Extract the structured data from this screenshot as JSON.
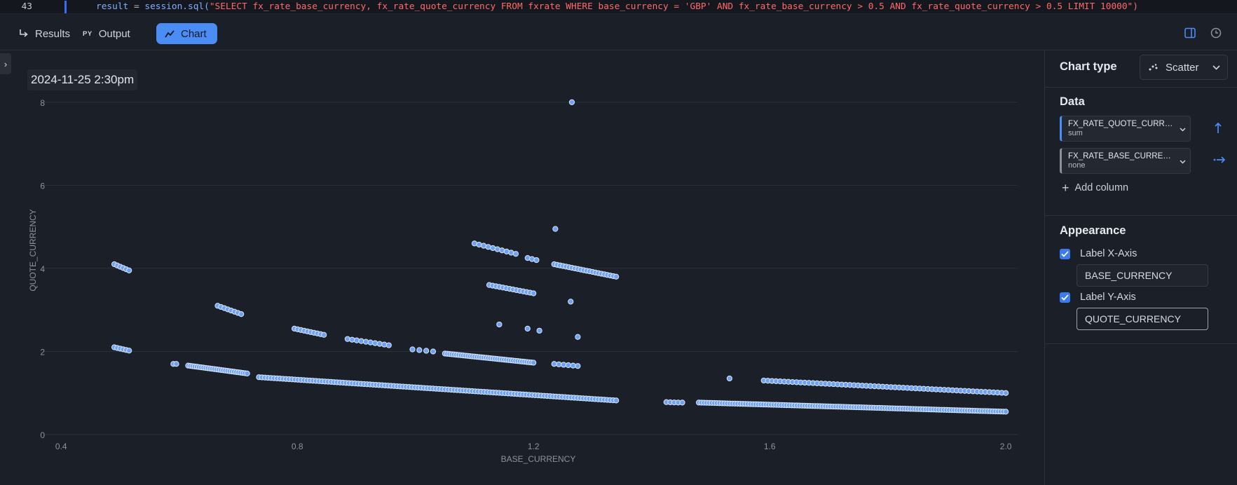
{
  "code": {
    "line_number": "43",
    "var": "result",
    "op": " = ",
    "call": "session.sql(",
    "string": "\"SELECT fx_rate_base_currency, fx_rate_quote_currency FROM fxrate WHERE base_currency = 'GBP' AND fx_rate_base_currency > 0.5 AND fx_rate_quote_currency > 0.5 LIMIT 10000\")"
  },
  "tabs": [
    {
      "label": "Results",
      "icon": "return-arrow-icon"
    },
    {
      "label": "Output",
      "icon": "python-icon",
      "icon_text": "PY"
    },
    {
      "label": "Chart",
      "icon": "line-chart-icon",
      "active": true
    }
  ],
  "chart_title": "2024-11-25 2:30pm",
  "colors": {
    "accent": "#4a8df5",
    "point_fill": "#6ea1f2",
    "point_stroke": "#dbe7ff",
    "grid": "#2b3039",
    "axis_text": "#8d939d"
  },
  "chart_data": {
    "type": "scatter",
    "xlabel": "BASE_CURRENCY",
    "ylabel": "QUOTE_CURRENCY",
    "x_ticks": [
      "0.4",
      "0.8",
      "1.2",
      "1.6",
      "2.0"
    ],
    "x_tick_values": [
      0.4,
      0.8,
      1.2,
      1.6,
      2.0
    ],
    "y_ticks": [
      "0",
      "2",
      "4",
      "6",
      "8"
    ],
    "y_tick_values": [
      0,
      2,
      4,
      6,
      8
    ],
    "xlim": [
      0.37,
      2.02
    ],
    "ylim": [
      0,
      8.2
    ],
    "grid": true,
    "legend": "none",
    "clusters": [
      {
        "x0": 0.49,
        "x1": 0.515,
        "y0": 4.1,
        "y1": 3.95,
        "n": 6
      },
      {
        "x0": 0.49,
        "x1": 0.515,
        "y0": 2.1,
        "y1": 2.02,
        "n": 6
      },
      {
        "x0": 0.665,
        "x1": 0.705,
        "y0": 3.1,
        "y1": 2.9,
        "n": 8
      },
      {
        "x0": 0.59,
        "x1": 0.595,
        "y0": 1.7,
        "y1": 1.7,
        "n": 2
      },
      {
        "x0": 0.615,
        "x1": 0.715,
        "y0": 1.66,
        "y1": 1.47,
        "n": 28
      },
      {
        "x0": 0.735,
        "x1": 1.34,
        "y0": 1.38,
        "y1": 0.82,
        "n": 120
      },
      {
        "x0": 0.795,
        "x1": 0.845,
        "y0": 2.55,
        "y1": 2.4,
        "n": 10
      },
      {
        "x0": 0.885,
        "x1": 0.955,
        "y0": 2.3,
        "y1": 2.15,
        "n": 10
      },
      {
        "x0": 0.995,
        "x1": 1.03,
        "y0": 2.05,
        "y1": 2.0,
        "n": 4
      },
      {
        "x0": 1.05,
        "x1": 1.2,
        "y0": 1.95,
        "y1": 1.73,
        "n": 40
      },
      {
        "x0": 1.1,
        "x1": 1.17,
        "y0": 4.6,
        "y1": 4.35,
        "n": 10
      },
      {
        "x0": 1.19,
        "x1": 1.205,
        "y0": 4.25,
        "y1": 4.2,
        "n": 3
      },
      {
        "x0": 1.125,
        "x1": 1.2,
        "y0": 3.6,
        "y1": 3.4,
        "n": 14
      },
      {
        "x0": 1.235,
        "x1": 1.34,
        "y0": 4.1,
        "y1": 3.8,
        "n": 22
      },
      {
        "x0": 1.235,
        "x1": 1.275,
        "y0": 1.7,
        "y1": 1.65,
        "n": 6
      },
      {
        "x0": 1.425,
        "x1": 1.445,
        "y0": 0.78,
        "y1": 0.77,
        "n": 4
      },
      {
        "x0": 1.48,
        "x1": 2.0,
        "y0": 0.77,
        "y1": 0.55,
        "n": 120
      },
      {
        "x0": 1.59,
        "x1": 2.0,
        "y0": 1.3,
        "y1": 1.0,
        "n": 60
      }
    ],
    "points": [
      {
        "x": 1.265,
        "y": 8.0
      },
      {
        "x": 1.237,
        "y": 4.95
      },
      {
        "x": 1.263,
        "y": 3.2
      },
      {
        "x": 1.142,
        "y": 2.65
      },
      {
        "x": 1.19,
        "y": 2.55
      },
      {
        "x": 1.21,
        "y": 2.5
      },
      {
        "x": 1.275,
        "y": 2.35
      },
      {
        "x": 1.532,
        "y": 1.35
      },
      {
        "x": 1.452,
        "y": 0.77
      }
    ]
  },
  "panel": {
    "chart_type_label": "Chart type",
    "chart_type_value": "Scatter",
    "data_label": "Data",
    "columns": [
      {
        "name": "FX_RATE_QUOTE_CURRENCY",
        "agg": "sum",
        "axis_icon": "arrow-up-icon"
      },
      {
        "name": "FX_RATE_BASE_CURRENCY",
        "agg": "none",
        "axis_icon": "arrow-right-icon"
      }
    ],
    "add_column_label": "Add column",
    "appearance_label": "Appearance",
    "label_x_axis": "Label X-Axis",
    "label_x_value": "BASE_CURRENCY",
    "label_y_axis": "Label Y-Axis",
    "label_y_value": "QUOTE_CURRENCY"
  }
}
